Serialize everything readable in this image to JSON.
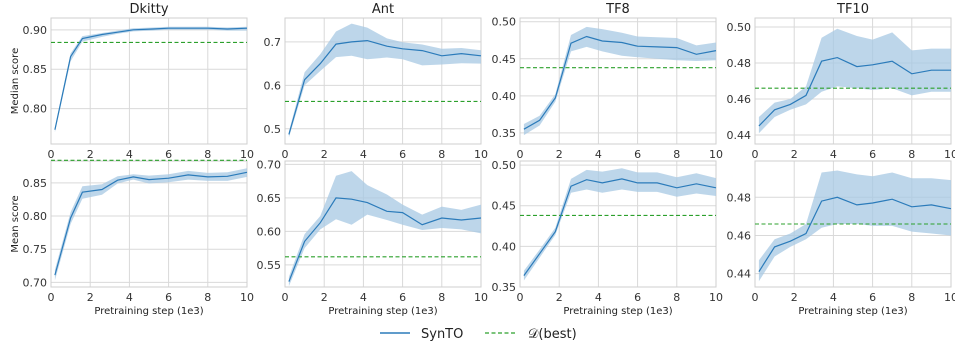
{
  "colors": {
    "synto": "#2b7bba",
    "band": "#a7c8e3",
    "best": "#2ca02c"
  },
  "legend": {
    "series": [
      "SynTO",
      "𝒟(best)"
    ],
    "placement": "bottom-center"
  },
  "row_labels": [
    "Median score",
    "Mean score"
  ],
  "chart_data": [
    {
      "type": "line",
      "title": "Dkitty",
      "ylabel": "Median score",
      "xlabel": "",
      "xlim": [
        0,
        10
      ],
      "ylim": [
        0.755,
        0.915
      ],
      "xticks": [
        "0",
        "2",
        "4",
        "6",
        "8",
        "10"
      ],
      "yticks": [
        "0.80",
        "0.85",
        "0.90"
      ],
      "x": [
        0.2,
        1.0,
        1.6,
        2.6,
        3.4,
        4.2,
        5.2,
        6.0,
        7.0,
        8.0,
        9.0,
        10.0
      ],
      "series": [
        {
          "name": "SynTO",
          "values": [
            0.773,
            0.866,
            0.889,
            0.894,
            0.897,
            0.9,
            0.901,
            0.902,
            0.902,
            0.902,
            0.901,
            0.902
          ],
          "lower": [
            0.77,
            0.86,
            0.885,
            0.891,
            0.895,
            0.898,
            0.899,
            0.9,
            0.9,
            0.9,
            0.899,
            0.899
          ],
          "upper": [
            0.776,
            0.87,
            0.892,
            0.896,
            0.899,
            0.902,
            0.903,
            0.904,
            0.904,
            0.904,
            0.903,
            0.904
          ]
        }
      ],
      "reference": {
        "name": "𝒟(best)",
        "value": 0.884
      }
    },
    {
      "type": "line",
      "title": "Ant",
      "ylabel": "",
      "xlabel": "",
      "xlim": [
        0,
        10
      ],
      "ylim": [
        0.465,
        0.755
      ],
      "xticks": [
        "0",
        "2",
        "4",
        "6",
        "8",
        "10"
      ],
      "yticks": [
        "0.5",
        "0.6",
        "0.7"
      ],
      "x": [
        0.2,
        1.0,
        1.8,
        2.6,
        3.4,
        4.2,
        5.2,
        6.0,
        7.0,
        8.0,
        9.0,
        10.0
      ],
      "series": [
        {
          "name": "SynTO",
          "values": [
            0.487,
            0.613,
            0.65,
            0.695,
            0.7,
            0.703,
            0.69,
            0.684,
            0.68,
            0.668,
            0.673,
            0.668
          ],
          "lower": [
            0.48,
            0.6,
            0.633,
            0.665,
            0.668,
            0.66,
            0.664,
            0.66,
            0.646,
            0.648,
            0.651,
            0.65
          ],
          "upper": [
            0.494,
            0.63,
            0.672,
            0.724,
            0.742,
            0.733,
            0.708,
            0.699,
            0.694,
            0.684,
            0.686,
            0.681
          ]
        }
      ],
      "reference": {
        "name": "𝒟(best)",
        "value": 0.563
      }
    },
    {
      "type": "line",
      "title": "TF8",
      "ylabel": "",
      "xlabel": "",
      "xlim": [
        0,
        10
      ],
      "ylim": [
        0.335,
        0.505
      ],
      "xticks": [
        "0",
        "2",
        "4",
        "6",
        "8",
        "10"
      ],
      "yticks": [
        "0.35",
        "0.40",
        "0.45",
        "0.50"
      ],
      "x": [
        0.2,
        1.0,
        1.8,
        2.6,
        3.4,
        4.2,
        5.2,
        6.0,
        7.0,
        8.0,
        9.0,
        10.0
      ],
      "series": [
        {
          "name": "SynTO",
          "values": [
            0.355,
            0.367,
            0.397,
            0.471,
            0.48,
            0.474,
            0.472,
            0.467,
            0.466,
            0.465,
            0.456,
            0.461
          ],
          "lower": [
            0.347,
            0.36,
            0.392,
            0.46,
            0.466,
            0.46,
            0.454,
            0.452,
            0.45,
            0.448,
            0.447,
            0.448
          ],
          "upper": [
            0.362,
            0.373,
            0.402,
            0.482,
            0.493,
            0.49,
            0.485,
            0.48,
            0.479,
            0.478,
            0.468,
            0.472
          ]
        }
      ],
      "reference": {
        "name": "𝒟(best)",
        "value": 0.438
      }
    },
    {
      "type": "line",
      "title": "TF10",
      "ylabel": "",
      "xlabel": "",
      "xlim": [
        0,
        10
      ],
      "ylim": [
        0.435,
        0.505
      ],
      "xticks": [
        "0",
        "2",
        "4",
        "6",
        "8",
        "10"
      ],
      "yticks": [
        "0.44",
        "0.46",
        "0.48",
        "0.50"
      ],
      "x": [
        0.2,
        1.0,
        1.8,
        2.6,
        3.4,
        4.2,
        5.2,
        6.0,
        7.0,
        8.0,
        9.0,
        10.0
      ],
      "series": [
        {
          "name": "SynTO",
          "values": [
            0.445,
            0.454,
            0.457,
            0.462,
            0.481,
            0.483,
            0.478,
            0.479,
            0.481,
            0.474,
            0.476,
            0.476
          ],
          "lower": [
            0.441,
            0.45,
            0.454,
            0.457,
            0.464,
            0.467,
            0.466,
            0.465,
            0.466,
            0.462,
            0.464,
            0.464
          ],
          "upper": [
            0.45,
            0.458,
            0.46,
            0.467,
            0.494,
            0.499,
            0.495,
            0.493,
            0.497,
            0.487,
            0.488,
            0.488
          ]
        }
      ],
      "reference": {
        "name": "𝒟(best)",
        "value": 0.466
      }
    },
    {
      "type": "line",
      "title": "",
      "ylabel": "Mean score",
      "xlabel": "Pretraining step (1e3)",
      "xlim": [
        0,
        10
      ],
      "ylim": [
        0.693,
        0.883
      ],
      "xticks": [
        "0",
        "2",
        "4",
        "6",
        "8",
        "10"
      ],
      "yticks": [
        "0.70",
        "0.75",
        "0.80",
        "0.85"
      ],
      "x": [
        0.2,
        1.0,
        1.6,
        2.6,
        3.4,
        4.2,
        5.0,
        6.0,
        7.0,
        8.0,
        9.0,
        10.0
      ],
      "series": [
        {
          "name": "SynTO",
          "values": [
            0.711,
            0.797,
            0.836,
            0.84,
            0.854,
            0.859,
            0.855,
            0.857,
            0.862,
            0.859,
            0.86,
            0.866
          ],
          "lower": [
            0.703,
            0.788,
            0.826,
            0.832,
            0.849,
            0.855,
            0.849,
            0.851,
            0.855,
            0.853,
            0.853,
            0.859
          ],
          "upper": [
            0.719,
            0.806,
            0.845,
            0.848,
            0.86,
            0.863,
            0.861,
            0.863,
            0.868,
            0.865,
            0.866,
            0.872
          ]
        }
      ],
      "reference": {
        "name": "𝒟(best)",
        "value": 0.884
      }
    },
    {
      "type": "line",
      "title": "",
      "ylabel": "",
      "xlabel": "Pretraining step (1e3)",
      "xlim": [
        0,
        10
      ],
      "ylim": [
        0.517,
        0.705
      ],
      "xticks": [
        "0",
        "2",
        "4",
        "6",
        "8",
        "10"
      ],
      "yticks": [
        "0.55",
        "0.60",
        "0.65",
        "0.70"
      ],
      "x": [
        0.2,
        1.0,
        1.8,
        2.6,
        3.4,
        4.2,
        5.2,
        6.0,
        7.0,
        8.0,
        9.0,
        10.0
      ],
      "series": [
        {
          "name": "SynTO",
          "values": [
            0.525,
            0.585,
            0.613,
            0.65,
            0.648,
            0.643,
            0.63,
            0.628,
            0.61,
            0.62,
            0.617,
            0.62
          ],
          "lower": [
            0.518,
            0.575,
            0.603,
            0.618,
            0.61,
            0.625,
            0.617,
            0.61,
            0.602,
            0.605,
            0.603,
            0.597
          ],
          "upper": [
            0.532,
            0.596,
            0.623,
            0.683,
            0.69,
            0.669,
            0.655,
            0.64,
            0.625,
            0.637,
            0.632,
            0.64
          ]
        }
      ],
      "reference": {
        "name": "𝒟(best)",
        "value": 0.562
      }
    },
    {
      "type": "line",
      "title": "",
      "ylabel": "",
      "xlabel": "Pretraining step (1e3)",
      "xlim": [
        0,
        10
      ],
      "ylim": [
        0.35,
        0.505
      ],
      "xticks": [
        "0",
        "2",
        "4",
        "6",
        "8",
        "10"
      ],
      "yticks": [
        "0.35",
        "0.40",
        "0.45",
        "0.50"
      ],
      "x": [
        0.2,
        1.0,
        1.8,
        2.6,
        3.4,
        4.2,
        5.2,
        6.0,
        7.0,
        8.0,
        9.0,
        10.0
      ],
      "series": [
        {
          "name": "SynTO",
          "values": [
            0.364,
            0.391,
            0.418,
            0.474,
            0.482,
            0.478,
            0.483,
            0.478,
            0.478,
            0.472,
            0.477,
            0.472
          ],
          "lower": [
            0.358,
            0.386,
            0.414,
            0.466,
            0.47,
            0.466,
            0.47,
            0.467,
            0.467,
            0.461,
            0.465,
            0.462
          ],
          "upper": [
            0.37,
            0.396,
            0.423,
            0.483,
            0.494,
            0.492,
            0.496,
            0.491,
            0.491,
            0.485,
            0.49,
            0.484
          ]
        }
      ],
      "reference": {
        "name": "𝒟(best)",
        "value": 0.438
      }
    },
    {
      "type": "line",
      "title": "",
      "ylabel": "",
      "xlabel": "Pretraining step (1e3)",
      "xlim": [
        0,
        10
      ],
      "ylim": [
        0.433,
        0.499
      ],
      "xticks": [
        "0",
        "2",
        "4",
        "6",
        "8",
        "10"
      ],
      "yticks": [
        "0.44",
        "0.46",
        "0.48"
      ],
      "x": [
        0.2,
        1.0,
        1.8,
        2.6,
        3.4,
        4.2,
        5.2,
        6.0,
        7.0,
        8.0,
        9.0,
        10.0
      ],
      "series": [
        {
          "name": "SynTO",
          "values": [
            0.441,
            0.454,
            0.457,
            0.461,
            0.478,
            0.48,
            0.476,
            0.477,
            0.479,
            0.475,
            0.476,
            0.474
          ],
          "lower": [
            0.436,
            0.449,
            0.454,
            0.458,
            0.464,
            0.466,
            0.466,
            0.465,
            0.465,
            0.462,
            0.461,
            0.46
          ],
          "upper": [
            0.447,
            0.458,
            0.461,
            0.466,
            0.493,
            0.494,
            0.492,
            0.491,
            0.493,
            0.49,
            0.49,
            0.489
          ]
        }
      ],
      "reference": {
        "name": "𝒟(best)",
        "value": 0.466
      }
    }
  ]
}
